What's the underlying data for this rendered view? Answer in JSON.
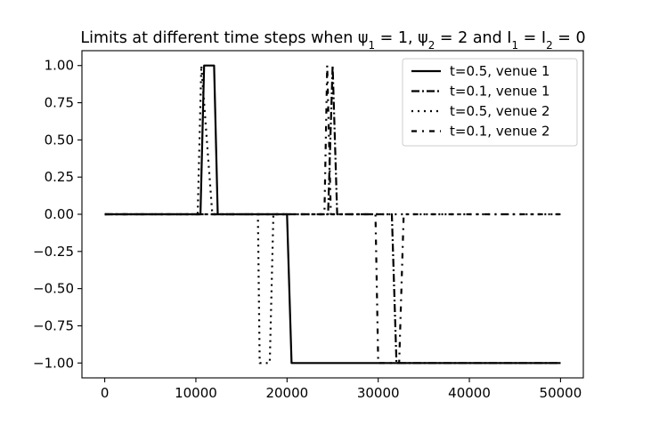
{
  "chart_data": {
    "type": "line",
    "title": "Limits at different time steps when ψ₁ = 1, ψ₂ = 2 and I₁ = I₂ = 0",
    "xlabel": "",
    "ylabel": "",
    "xlim": [
      -2500,
      52500
    ],
    "ylim": [
      -1.1,
      1.1
    ],
    "xticks": [
      0,
      10000,
      20000,
      30000,
      40000,
      50000
    ],
    "xtick_labels": [
      "0",
      "10000",
      "20000",
      "30000",
      "40000",
      "50000"
    ],
    "yticks": [
      1.0,
      0.75,
      0.5,
      0.25,
      0.0,
      -0.25,
      -0.5,
      -0.75,
      -1.0
    ],
    "ytick_labels": [
      "1.00",
      "0.75",
      "0.50",
      "0.25",
      "0.00",
      "−0.25",
      "−0.50",
      "−0.75",
      "−1.00"
    ],
    "grid": false,
    "legend_position": "top-right",
    "series": [
      {
        "name": "t=0.5, venue 1",
        "style": "solid",
        "color": "#000000",
        "x": [
          0,
          10500,
          10900,
          12000,
          12400,
          20000,
          20500,
          50000
        ],
        "y": [
          0,
          0,
          1,
          1,
          0,
          0,
          -1,
          -1
        ]
      },
      {
        "name": "t=0.1, venue 1",
        "style": "dashdot",
        "color": "#000000",
        "x": [
          0,
          24500,
          25000,
          25500,
          31500,
          32000,
          50000
        ],
        "y": [
          0,
          0,
          1,
          0,
          0,
          -1,
          -1
        ]
      },
      {
        "name": "t=0.5, venue 2",
        "style": "dotted",
        "color": "#000000",
        "x": [
          0,
          10200,
          10600,
          11800,
          12200,
          16800,
          17000,
          18100,
          18500,
          50000
        ],
        "y": [
          0,
          0,
          1,
          0,
          0,
          0,
          -1,
          -1,
          0,
          0
        ]
      },
      {
        "name": "t=0.1, venue 2",
        "style": "loosely-dashdotted",
        "color": "#000000",
        "x": [
          0,
          24100,
          24400,
          24800,
          29700,
          30000,
          32300,
          32800,
          50000
        ],
        "y": [
          0,
          0,
          1,
          0,
          0,
          -1,
          -1,
          0,
          0
        ]
      }
    ]
  }
}
